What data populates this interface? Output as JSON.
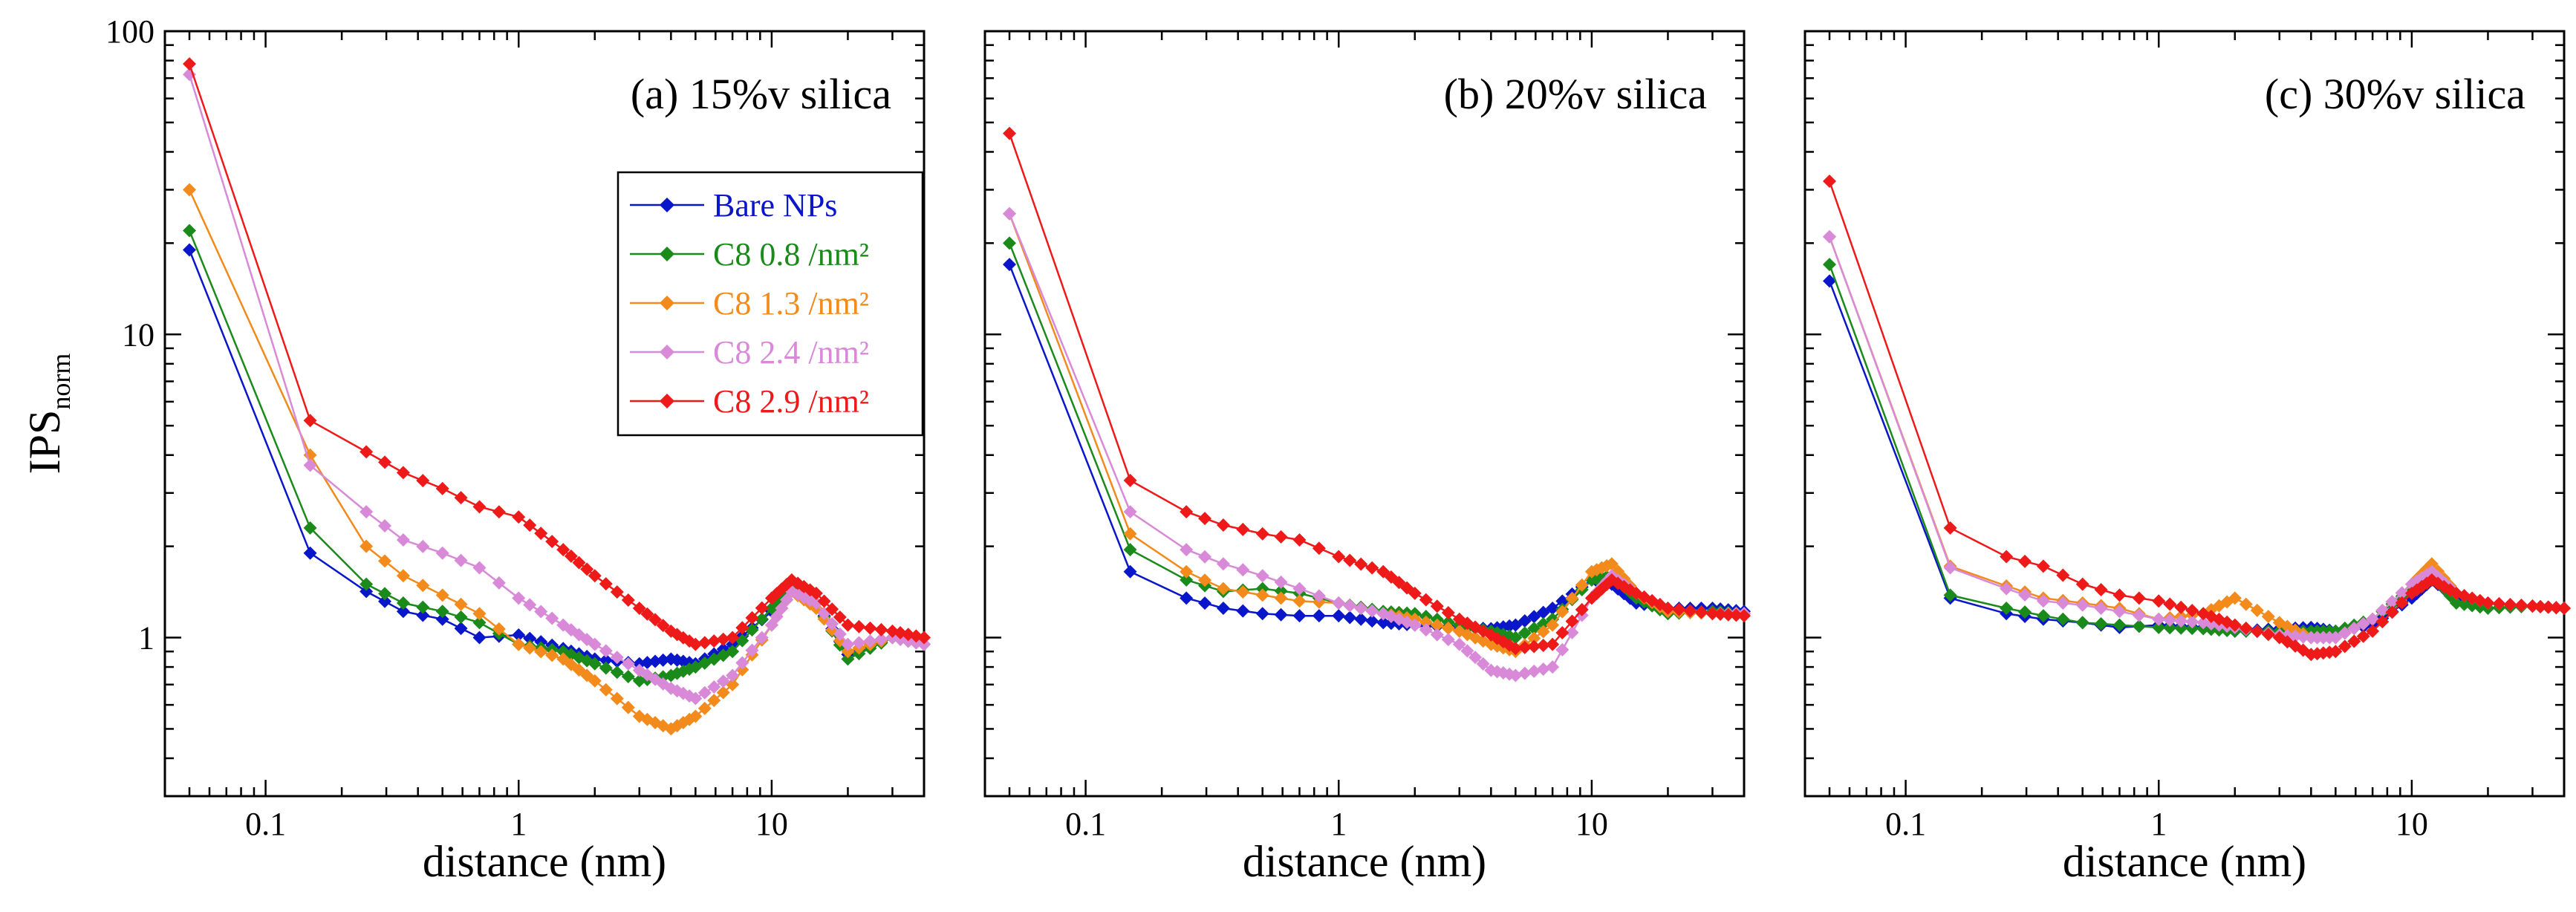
{
  "chart_data": [
    {
      "type": "line",
      "panel": "a",
      "title": "(a) 15%v silica",
      "xlabel": "distance (nm)",
      "ylabel": "IPS",
      "ylabel_sub": "norm",
      "xscale": "log",
      "yscale": "log",
      "xlim": [
        0.04,
        40
      ],
      "ylim": [
        0.3,
        100
      ],
      "xticks": [
        {
          "value": 0.1,
          "label": "0.1"
        },
        {
          "value": 1,
          "label": "1"
        },
        {
          "value": 10,
          "label": "10"
        }
      ],
      "yticks": [
        {
          "value": 1,
          "label": "1"
        },
        {
          "value": 10,
          "label": "10"
        },
        {
          "value": 100,
          "label": "100"
        }
      ],
      "legend_position": "upper-right, below title",
      "series": [
        {
          "name": "Bare NPs",
          "color": "#0a16c9",
          "x": [
            0.05,
            0.15,
            0.25,
            0.35,
            0.5,
            0.7,
            1.0,
            1.5,
            2.0,
            3.0,
            4.0,
            5.0,
            7.0,
            10,
            12,
            15,
            20,
            30,
            40
          ],
          "y": [
            19,
            1.9,
            1.42,
            1.22,
            1.15,
            1.0,
            1.02,
            0.92,
            0.85,
            0.82,
            0.85,
            0.82,
            0.95,
            1.22,
            1.5,
            1.3,
            0.88,
            1.0,
            0.95
          ]
        },
        {
          "name": "C8 0.8 /nm²",
          "color": "#1a8a1a",
          "x": [
            0.05,
            0.15,
            0.25,
            0.35,
            0.5,
            0.7,
            1.0,
            1.5,
            2.0,
            3.0,
            4.0,
            5.0,
            7.0,
            10,
            12,
            15,
            20,
            30,
            40
          ],
          "y": [
            22,
            2.3,
            1.5,
            1.3,
            1.22,
            1.12,
            0.95,
            0.9,
            0.82,
            0.72,
            0.75,
            0.8,
            0.9,
            1.25,
            1.5,
            1.3,
            0.85,
            1.0,
            0.95
          ]
        },
        {
          "name": "C8 1.3 /nm²",
          "color": "#f28a1c",
          "x": [
            0.05,
            0.15,
            0.25,
            0.35,
            0.5,
            0.7,
            1.0,
            1.5,
            2.0,
            3.0,
            4.0,
            5.0,
            7.0,
            10,
            12,
            15,
            20,
            30,
            40
          ],
          "y": [
            30,
            4.0,
            2.0,
            1.6,
            1.38,
            1.2,
            0.95,
            0.85,
            0.72,
            0.55,
            0.5,
            0.55,
            0.7,
            1.1,
            1.42,
            1.25,
            0.9,
            1.0,
            0.95
          ]
        },
        {
          "name": "C8 2.4 /nm²",
          "color": "#d88ad8",
          "x": [
            0.05,
            0.15,
            0.25,
            0.35,
            0.5,
            0.7,
            1.0,
            1.5,
            2.0,
            3.0,
            4.0,
            5.0,
            7.0,
            10,
            12,
            15,
            20,
            30,
            40
          ],
          "y": [
            72,
            3.7,
            2.6,
            2.1,
            1.9,
            1.7,
            1.35,
            1.1,
            0.95,
            0.78,
            0.68,
            0.63,
            0.75,
            1.1,
            1.42,
            1.3,
            0.95,
            1.0,
            0.95
          ]
        },
        {
          "name": "C8 2.9 /nm²",
          "color": "#ee1a1a",
          "x": [
            0.05,
            0.15,
            0.25,
            0.35,
            0.5,
            0.7,
            1.0,
            1.5,
            2.0,
            3.0,
            4.0,
            5.0,
            7.0,
            10,
            12,
            15,
            20,
            30,
            40
          ],
          "y": [
            78,
            5.2,
            4.1,
            3.5,
            3.1,
            2.7,
            2.5,
            1.95,
            1.6,
            1.25,
            1.05,
            0.95,
            1.0,
            1.35,
            1.55,
            1.4,
            1.1,
            1.05,
            1.0
          ]
        }
      ]
    },
    {
      "type": "line",
      "panel": "b",
      "title": "(b) 20%v silica",
      "xlabel": "distance (nm)",
      "xscale": "log",
      "yscale": "log",
      "xlim": [
        0.04,
        40
      ],
      "ylim": [
        0.3,
        100
      ],
      "xticks": [
        {
          "value": 0.1,
          "label": "0.1"
        },
        {
          "value": 1,
          "label": "1"
        },
        {
          "value": 10,
          "label": "10"
        }
      ],
      "series": [
        {
          "name": "Bare NPs",
          "color": "#0a16c9",
          "x": [
            0.05,
            0.15,
            0.25,
            0.35,
            0.5,
            0.7,
            1.0,
            1.5,
            2.0,
            3.0,
            4.0,
            5.0,
            7.0,
            10,
            12,
            15,
            20,
            30,
            40
          ],
          "y": [
            17,
            1.65,
            1.35,
            1.25,
            1.2,
            1.18,
            1.18,
            1.12,
            1.1,
            1.08,
            1.07,
            1.1,
            1.25,
            1.55,
            1.5,
            1.3,
            1.25,
            1.25,
            1.22
          ]
        },
        {
          "name": "C8 0.8 /nm²",
          "color": "#1a8a1a",
          "x": [
            0.05,
            0.15,
            0.25,
            0.35,
            0.5,
            0.7,
            1.0,
            1.5,
            2.0,
            3.0,
            4.0,
            5.0,
            7.0,
            10,
            12,
            15,
            20,
            30,
            40
          ],
          "y": [
            20,
            1.95,
            1.55,
            1.42,
            1.45,
            1.4,
            1.3,
            1.22,
            1.2,
            1.1,
            1.05,
            1.0,
            1.15,
            1.55,
            1.6,
            1.35,
            1.2,
            1.22,
            1.2
          ]
        },
        {
          "name": "C8 1.3 /nm²",
          "color": "#f28a1c",
          "x": [
            0.05,
            0.15,
            0.25,
            0.35,
            0.5,
            0.7,
            1.0,
            1.5,
            2.0,
            3.0,
            4.0,
            5.0,
            7.0,
            10,
            12,
            15,
            20,
            30,
            40
          ],
          "y": [
            25,
            2.2,
            1.65,
            1.45,
            1.38,
            1.32,
            1.3,
            1.2,
            1.15,
            1.05,
            0.95,
            0.9,
            1.1,
            1.65,
            1.75,
            1.4,
            1.22,
            1.2,
            1.2
          ]
        },
        {
          "name": "C8 2.4 /nm²",
          "color": "#d88ad8",
          "x": [
            0.05,
            0.15,
            0.25,
            0.35,
            0.5,
            0.7,
            1.0,
            1.5,
            2.0,
            3.0,
            4.0,
            5.0,
            7.0,
            10,
            12,
            15,
            20,
            30,
            40
          ],
          "y": [
            25,
            2.6,
            1.95,
            1.75,
            1.6,
            1.45,
            1.3,
            1.2,
            1.1,
            0.95,
            0.78,
            0.75,
            0.8,
            1.35,
            1.6,
            1.4,
            1.25,
            1.2,
            1.2
          ]
        },
        {
          "name": "C8 2.9 /nm²",
          "color": "#ee1a1a",
          "x": [
            0.05,
            0.15,
            0.25,
            0.35,
            0.5,
            0.7,
            1.0,
            1.5,
            2.0,
            3.0,
            4.0,
            5.0,
            7.0,
            10,
            12,
            15,
            20,
            30,
            40
          ],
          "y": [
            46,
            3.3,
            2.6,
            2.35,
            2.2,
            2.1,
            1.85,
            1.65,
            1.4,
            1.15,
            1.02,
            0.92,
            0.95,
            1.35,
            1.55,
            1.4,
            1.25,
            1.2,
            1.18
          ]
        }
      ]
    },
    {
      "type": "line",
      "panel": "c",
      "title": "(c) 30%v silica",
      "xlabel": "distance (nm)",
      "xscale": "log",
      "yscale": "log",
      "xlim": [
        0.04,
        40
      ],
      "ylim": [
        0.3,
        100
      ],
      "xticks": [
        {
          "value": 0.1,
          "label": "0.1"
        },
        {
          "value": 1,
          "label": "1"
        },
        {
          "value": 10,
          "label": "10"
        }
      ],
      "series": [
        {
          "name": "Bare NPs",
          "color": "#0a16c9",
          "x": [
            0.05,
            0.15,
            0.25,
            0.35,
            0.5,
            0.7,
            1.0,
            1.5,
            2.0,
            3.0,
            4.0,
            5.0,
            7.0,
            10,
            12,
            15,
            20,
            30,
            40
          ],
          "y": [
            15,
            1.35,
            1.2,
            1.15,
            1.12,
            1.08,
            1.1,
            1.08,
            1.05,
            1.07,
            1.08,
            1.05,
            1.1,
            1.35,
            1.55,
            1.35,
            1.3,
            1.27,
            1.25
          ]
        },
        {
          "name": "C8 0.8 /nm²",
          "color": "#1a8a1a",
          "x": [
            0.05,
            0.15,
            0.25,
            0.35,
            0.5,
            0.7,
            1.0,
            1.5,
            2.0,
            3.0,
            4.0,
            5.0,
            7.0,
            10,
            12,
            15,
            20,
            30,
            40
          ],
          "y": [
            17,
            1.38,
            1.25,
            1.18,
            1.12,
            1.1,
            1.08,
            1.07,
            1.05,
            1.05,
            1.05,
            1.05,
            1.15,
            1.45,
            1.62,
            1.3,
            1.25,
            1.27,
            1.25
          ]
        },
        {
          "name": "C8 1.3 /nm²",
          "color": "#f28a1c",
          "x": [
            0.05,
            0.15,
            0.25,
            0.35,
            0.5,
            0.7,
            1.0,
            1.5,
            2.0,
            3.0,
            4.0,
            5.0,
            7.0,
            10,
            12,
            15,
            20,
            30,
            40
          ],
          "y": [
            21,
            1.72,
            1.48,
            1.35,
            1.3,
            1.25,
            1.15,
            1.2,
            1.35,
            1.12,
            1.0,
            1.0,
            1.15,
            1.5,
            1.75,
            1.4,
            1.3,
            1.27,
            1.25
          ]
        },
        {
          "name": "C8 2.4 /nm²",
          "color": "#d88ad8",
          "x": [
            0.05,
            0.15,
            0.25,
            0.35,
            0.5,
            0.7,
            1.0,
            1.5,
            2.0,
            3.0,
            4.0,
            5.0,
            7.0,
            10,
            12,
            15,
            20,
            30,
            40
          ],
          "y": [
            21,
            1.7,
            1.45,
            1.32,
            1.28,
            1.22,
            1.15,
            1.12,
            1.08,
            1.02,
            1.0,
            1.0,
            1.15,
            1.5,
            1.65,
            1.4,
            1.3,
            1.27,
            1.25
          ]
        },
        {
          "name": "C8 2.9 /nm²",
          "color": "#ee1a1a",
          "x": [
            0.05,
            0.15,
            0.25,
            0.35,
            0.5,
            0.7,
            1.0,
            1.5,
            2.0,
            3.0,
            4.0,
            5.0,
            7.0,
            10,
            12,
            15,
            20,
            30,
            40
          ],
          "y": [
            32,
            2.3,
            1.85,
            1.72,
            1.5,
            1.38,
            1.32,
            1.2,
            1.1,
            1.0,
            0.88,
            0.9,
            1.05,
            1.4,
            1.55,
            1.4,
            1.3,
            1.27,
            1.25
          ]
        }
      ]
    }
  ]
}
